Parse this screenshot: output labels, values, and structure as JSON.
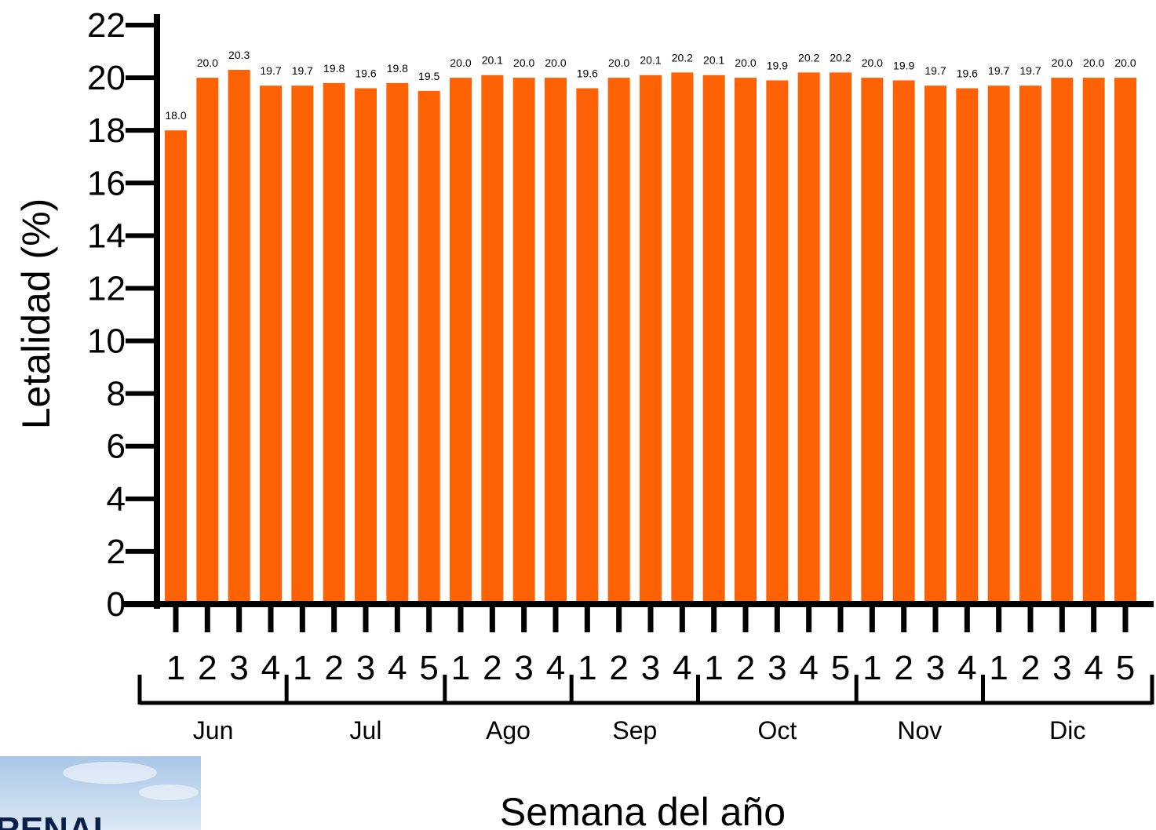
{
  "chart_data": {
    "type": "bar",
    "ylabel": "Letalidad (%)",
    "xlabel": "Semana del año",
    "ylim": [
      0,
      22
    ],
    "yticks": [
      0,
      2,
      4,
      6,
      8,
      10,
      12,
      14,
      16,
      18,
      20,
      22
    ],
    "bar_color": "#ff6205",
    "months": [
      {
        "name": "Jun",
        "weeks": [
          "1",
          "2",
          "3",
          "4"
        ]
      },
      {
        "name": "Jul",
        "weeks": [
          "1",
          "2",
          "3",
          "4",
          "5"
        ]
      },
      {
        "name": "Ago",
        "weeks": [
          "1",
          "2",
          "3",
          "4"
        ]
      },
      {
        "name": "Sep",
        "weeks": [
          "1",
          "2",
          "3",
          "4"
        ]
      },
      {
        "name": "Oct",
        "weeks": [
          "1",
          "2",
          "3",
          "4",
          "5"
        ]
      },
      {
        "name": "Nov",
        "weeks": [
          "1",
          "2",
          "3",
          "4"
        ]
      },
      {
        "name": "Dic",
        "weeks": [
          "1",
          "2",
          "3",
          "4",
          "5"
        ]
      }
    ],
    "values": [
      18.0,
      20.0,
      20.3,
      19.7,
      19.7,
      19.8,
      19.6,
      19.8,
      19.5,
      20.0,
      20.1,
      20.0,
      20.0,
      19.6,
      20.0,
      20.1,
      20.2,
      20.1,
      20.0,
      19.9,
      20.2,
      20.2,
      20.0,
      19.9,
      19.7,
      19.6,
      19.7,
      19.7,
      20.0,
      20.0,
      20.0
    ],
    "data_labels": [
      "18.0",
      "20.0",
      "20.3",
      "19.7",
      "19.7",
      "19.8",
      "19.6",
      "19.8",
      "19.5",
      "20.0",
      "20.1",
      "20.0",
      "20.0",
      "19.6",
      "20.0",
      "20.1",
      "20.2",
      "20.1",
      "20.0",
      "19.9",
      "20.2",
      "20.2",
      "20.0",
      "19.9",
      "19.7",
      "19.6",
      "19.7",
      "19.7",
      "20.0",
      "20.0",
      "20.0"
    ]
  },
  "logo": {
    "text": "RENAL"
  }
}
